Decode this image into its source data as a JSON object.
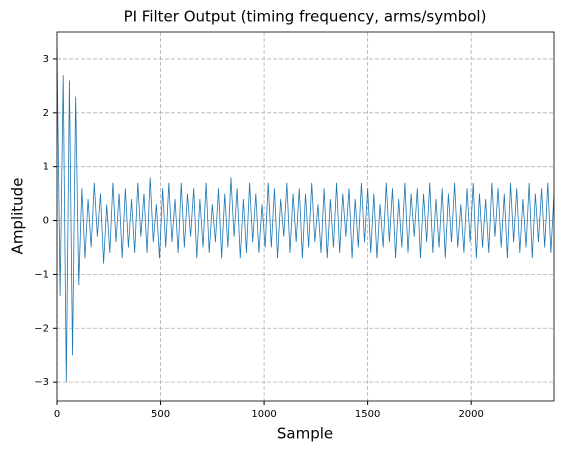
{
  "chart_data": {
    "type": "line",
    "title": "PI Filter Output (timing frequency, arms/symbol)",
    "x_label": "Sample",
    "y_label": "Amplitude",
    "color": "#1f77b4",
    "grid": true,
    "xlim": [
      0,
      2400
    ],
    "ylim": [
      -3.35,
      3.5
    ],
    "xticks": [
      0,
      500,
      1000,
      1500,
      2000
    ],
    "yticks": [
      {
        "value": -3,
        "label": "−3"
      },
      {
        "value": -2,
        "label": "−2"
      },
      {
        "value": -1,
        "label": "−1"
      },
      0,
      1,
      2,
      3
    ],
    "x": [
      0,
      15,
      30,
      45,
      60,
      75,
      90,
      105,
      120,
      135,
      150,
      165,
      180,
      195,
      210,
      225,
      240,
      255,
      270,
      285,
      300,
      315,
      330,
      345,
      360,
      375,
      390,
      405,
      420,
      435,
      450,
      465,
      480,
      495,
      510,
      525,
      540,
      555,
      570,
      585,
      600,
      615,
      630,
      645,
      660,
      675,
      690,
      705,
      720,
      735,
      750,
      765,
      780,
      795,
      810,
      825,
      840,
      855,
      870,
      885,
      900,
      915,
      930,
      945,
      960,
      975,
      990,
      1005,
      1020,
      1035,
      1050,
      1065,
      1080,
      1095,
      1110,
      1125,
      1140,
      1155,
      1170,
      1185,
      1200,
      1215,
      1230,
      1245,
      1260,
      1275,
      1290,
      1305,
      1320,
      1335,
      1350,
      1365,
      1380,
      1395,
      1410,
      1425,
      1440,
      1455,
      1470,
      1485,
      1500,
      1515,
      1530,
      1545,
      1560,
      1575,
      1590,
      1605,
      1620,
      1635,
      1650,
      1665,
      1680,
      1695,
      1710,
      1725,
      1740,
      1755,
      1770,
      1785,
      1800,
      1815,
      1830,
      1845,
      1860,
      1875,
      1890,
      1905,
      1920,
      1935,
      1950,
      1965,
      1980,
      1995,
      2010,
      2025,
      2040,
      2055,
      2070,
      2085,
      2100,
      2115,
      2130,
      2145,
      2160,
      2175,
      2190,
      2205,
      2220,
      2235,
      2250,
      2265,
      2280,
      2295,
      2310,
      2325,
      2340,
      2355,
      2370,
      2385,
      2400
    ],
    "values": [
      3.2,
      -1.4,
      2.7,
      -3.0,
      2.6,
      -2.5,
      2.3,
      -1.2,
      0.6,
      -0.7,
      0.4,
      -0.5,
      0.7,
      -0.3,
      0.5,
      -0.8,
      0.3,
      -0.6,
      0.7,
      -0.4,
      0.5,
      -0.7,
      0.6,
      -0.5,
      0.4,
      -0.6,
      0.7,
      -0.3,
      0.5,
      -0.6,
      0.8,
      -0.4,
      0.3,
      -0.7,
      0.6,
      -0.5,
      0.7,
      -0.4,
      0.4,
      -0.6,
      0.7,
      -0.5,
      0.5,
      -0.3,
      0.6,
      -0.7,
      0.4,
      -0.5,
      0.7,
      -0.6,
      0.3,
      -0.4,
      0.6,
      -0.7,
      0.5,
      -0.5,
      0.8,
      -0.3,
      0.6,
      -0.7,
      0.4,
      -0.6,
      0.7,
      -0.4,
      0.5,
      -0.6,
      0.3,
      -0.5,
      0.7,
      -0.5,
      0.6,
      -0.7,
      0.4,
      -0.3,
      0.7,
      -0.6,
      0.5,
      -0.4,
      0.6,
      -0.7,
      0.5,
      -0.5,
      0.7,
      -0.4,
      0.3,
      -0.6,
      0.6,
      -0.7,
      0.4,
      -0.5,
      0.7,
      -0.6,
      0.5,
      -0.3,
      0.6,
      -0.7,
      0.4,
      -0.5,
      0.7,
      -0.4,
      0.6,
      -0.6,
      0.5,
      -0.7,
      0.3,
      -0.5,
      0.7,
      -0.4,
      0.6,
      -0.7,
      0.4,
      -0.5,
      0.7,
      -0.6,
      0.5,
      -0.3,
      0.6,
      -0.7,
      0.5,
      -0.4,
      0.7,
      -0.6,
      0.4,
      -0.5,
      0.6,
      -0.7,
      0.5,
      -0.4,
      0.7,
      -0.5,
      0.3,
      -0.6,
      0.6,
      -0.4,
      0.7,
      -0.7,
      0.5,
      -0.5,
      0.4,
      -0.6,
      0.7,
      -0.3,
      0.6,
      -0.5,
      0.5,
      -0.7,
      0.7,
      -0.4,
      0.6,
      -0.6,
      0.4,
      -0.5,
      0.7,
      -0.7,
      0.5,
      -0.4,
      0.6,
      -0.5,
      0.7,
      -0.6,
      0.5
    ]
  }
}
